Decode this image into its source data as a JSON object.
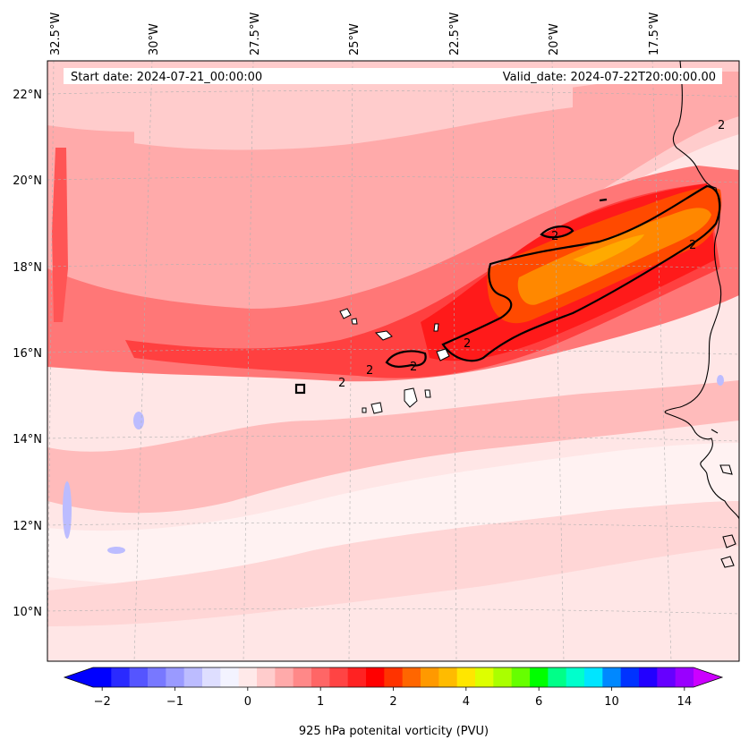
{
  "map": {
    "start_date": "Start date: 2024-07-21_00:00:00",
    "valid_date": "Valid_date: 2024-07-22T20:00:00.00",
    "lon_labels": [
      "32.5°W",
      "30°W",
      "27.5°W",
      "25°W",
      "22.5°W",
      "20°W",
      "17.5°W"
    ],
    "lat_labels": [
      "22°N",
      "20°N",
      "18°N",
      "16°N",
      "14°N",
      "12°N",
      "10°N"
    ],
    "contour_label": "2",
    "colors": {
      "background": "#ffe6e6",
      "frame": "#000000"
    }
  },
  "colorbar": {
    "label": "925 hPa potenital vorticity (PVU)",
    "tick_labels": [
      "−2",
      "−1",
      "0",
      "1",
      "2",
      "4",
      "6",
      "10",
      "14"
    ],
    "colors": [
      "#0000ff",
      "#2a2aff",
      "#5555ff",
      "#7878ff",
      "#9a9aff",
      "#bcbcff",
      "#dedeff",
      "#f3f3ff",
      "#ffe9e9",
      "#ffcccc",
      "#ffaaaa",
      "#ff8888",
      "#ff6666",
      "#ff4444",
      "#ff2222",
      "#ff0000",
      "#ff3300",
      "#ff6600",
      "#ff9900",
      "#ffbb00",
      "#ffe600",
      "#ddff00",
      "#aaff00",
      "#66ff00",
      "#00ff00",
      "#00ff88",
      "#00ffcc",
      "#00e5ff",
      "#0088ff",
      "#0033ff",
      "#2200ff",
      "#6600ff",
      "#9900ff"
    ],
    "extend_low_color": "#0000ff",
    "extend_high_color": "#cc00ff"
  }
}
